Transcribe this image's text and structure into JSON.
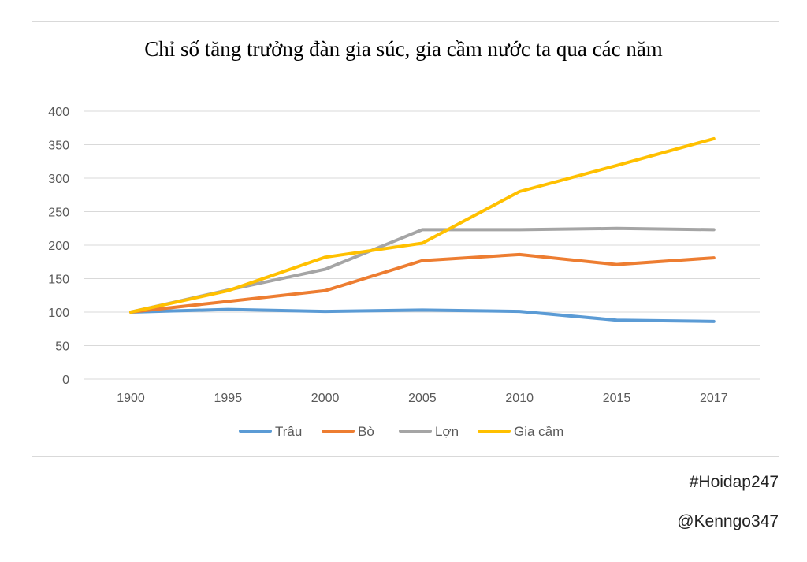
{
  "chart_data": {
    "type": "line",
    "title": "Chỉ số tăng trưởng đàn gia súc, gia cầm nước ta qua các năm",
    "xlabel": "",
    "ylabel": "",
    "categories": [
      "1900",
      "1995",
      "2000",
      "2005",
      "2010",
      "2015",
      "2017"
    ],
    "ylim": [
      0,
      400
    ],
    "yticks": [
      "0",
      "50",
      "100",
      "150",
      "200",
      "250",
      "300",
      "350",
      "400"
    ],
    "grid": true,
    "legend_position": "bottom",
    "series": [
      {
        "name": "Trâu",
        "color": "#5b9bd5",
        "values": [
          100,
          104,
          101,
          103,
          101,
          88,
          86
        ]
      },
      {
        "name": "Bò",
        "color": "#ed7d31",
        "values": [
          100,
          116,
          132,
          177,
          186,
          171,
          181
        ]
      },
      {
        "name": "Lợn",
        "color": "#a5a5a5",
        "values": [
          100,
          133,
          164,
          223,
          223,
          225,
          223
        ]
      },
      {
        "name": "Gia cầm",
        "color": "#ffc000",
        "values": [
          100,
          132,
          182,
          203,
          280,
          319,
          359
        ]
      }
    ]
  },
  "watermarks": {
    "hashtag": "#Hoidap247",
    "handle": "@Kenngo347"
  }
}
